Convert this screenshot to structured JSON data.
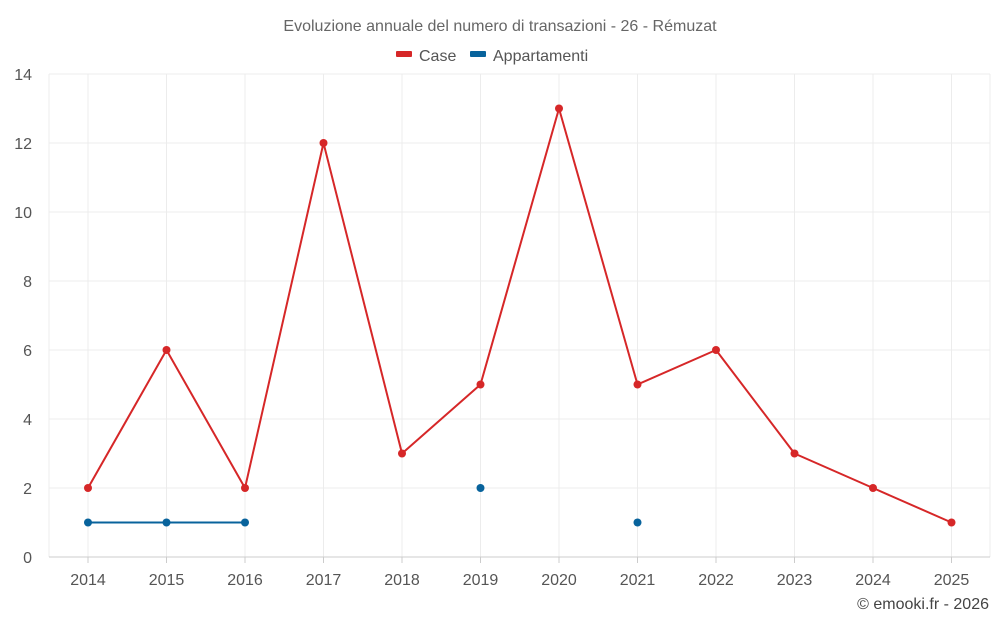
{
  "chart_data": {
    "type": "line",
    "title": "Evoluzione annuale del numero di transazioni - 26 - Rémuzat",
    "xlabel": "",
    "ylabel": "",
    "categories": [
      "2014",
      "2015",
      "2016",
      "2017",
      "2018",
      "2019",
      "2020",
      "2021",
      "2022",
      "2023",
      "2024",
      "2025"
    ],
    "ylim": [
      0,
      14
    ],
    "yticks": [
      0,
      2,
      4,
      6,
      8,
      10,
      12,
      14
    ],
    "grid": true,
    "legend_position": "top-center",
    "series": [
      {
        "name": "Case",
        "color": "#d62728",
        "values": [
          2,
          6,
          2,
          12,
          3,
          5,
          13,
          5,
          6,
          3,
          2,
          1
        ]
      },
      {
        "name": "Appartamenti",
        "color": "#08639c",
        "values": [
          1,
          1,
          1,
          null,
          null,
          2,
          null,
          1,
          null,
          null,
          null,
          null
        ]
      }
    ]
  },
  "credit": "© emooki.fr - 2026"
}
